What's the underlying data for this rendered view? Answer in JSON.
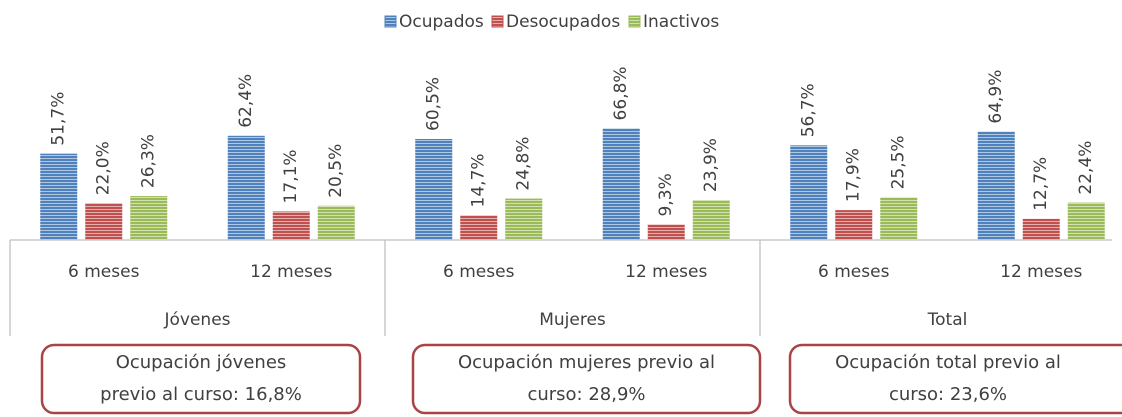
{
  "chart_data": {
    "type": "bar",
    "categories": [
      "6 meses",
      "12 meses",
      "6 meses",
      "12 meses",
      "6 meses",
      "12 meses"
    ],
    "groups": [
      "Jóvenes",
      "Mujeres",
      "Total"
    ],
    "series": [
      {
        "name": "Ocupados",
        "color": "#4f81bd",
        "values": [
          51.7,
          62.4,
          60.5,
          66.8,
          56.7,
          64.9
        ],
        "value_labels": [
          "51,7%",
          "62,4%",
          "60,5%",
          "66,8%",
          "56,7%",
          "64,9%"
        ]
      },
      {
        "name": "Desocupados",
        "color": "#c0504d",
        "values": [
          22.0,
          17.1,
          14.7,
          9.3,
          17.9,
          12.7
        ],
        "value_labels": [
          "22,0%",
          "17,1%",
          "14,7%",
          "9,3%",
          "17,9%",
          "12,7%"
        ]
      },
      {
        "name": "Inactivos",
        "color": "#9bbb59",
        "values": [
          26.3,
          20.5,
          24.8,
          23.9,
          25.5,
          22.4
        ],
        "value_labels": [
          "26,3%",
          "20,5%",
          "24,8%",
          "23,9%",
          "25,5%",
          "22,4%"
        ]
      }
    ],
    "legend": "top",
    "annotations": [
      [
        "Ocupación jóvenes",
        "previo al curso: 16,8%"
      ],
      [
        "Ocupación mujeres previo al",
        "curso: 28,9%"
      ],
      [
        "Ocupación total previo al",
        "curso: 23,6%"
      ]
    ]
  }
}
